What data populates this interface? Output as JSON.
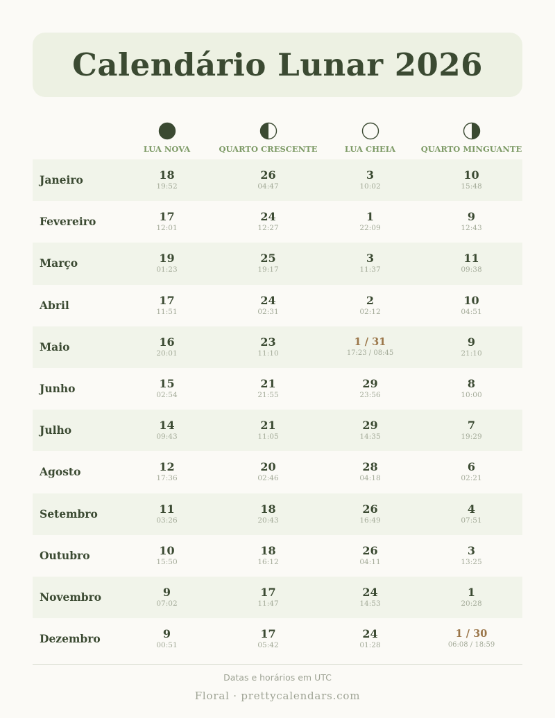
{
  "title": "Calendário Lunar 2026",
  "phases": [
    {
      "label": "LUA NOVA",
      "icon": "new-moon-icon"
    },
    {
      "label": "QUARTO CRESCENTE",
      "icon": "first-quarter-moon-icon"
    },
    {
      "label": "LUA CHEIA",
      "icon": "full-moon-icon"
    },
    {
      "label": "QUARTO MINGUANTE",
      "icon": "last-quarter-moon-icon"
    }
  ],
  "months": [
    {
      "name": "Janeiro",
      "cells": [
        {
          "day": "18",
          "time": "19:52"
        },
        {
          "day": "26",
          "time": "04:47"
        },
        {
          "day": "3",
          "time": "10:02"
        },
        {
          "day": "10",
          "time": "15:48"
        }
      ]
    },
    {
      "name": "Fevereiro",
      "cells": [
        {
          "day": "17",
          "time": "12:01"
        },
        {
          "day": "24",
          "time": "12:27"
        },
        {
          "day": "1",
          "time": "22:09"
        },
        {
          "day": "9",
          "time": "12:43"
        }
      ]
    },
    {
      "name": "Março",
      "cells": [
        {
          "day": "19",
          "time": "01:23"
        },
        {
          "day": "25",
          "time": "19:17"
        },
        {
          "day": "3",
          "time": "11:37"
        },
        {
          "day": "11",
          "time": "09:38"
        }
      ]
    },
    {
      "name": "Abril",
      "cells": [
        {
          "day": "17",
          "time": "11:51"
        },
        {
          "day": "24",
          "time": "02:31"
        },
        {
          "day": "2",
          "time": "02:12"
        },
        {
          "day": "10",
          "time": "04:51"
        }
      ]
    },
    {
      "name": "Maio",
      "cells": [
        {
          "day": "16",
          "time": "20:01"
        },
        {
          "day": "23",
          "time": "11:10"
        },
        {
          "day": "1 / 31",
          "time": "17:23 / 08:45"
        },
        {
          "day": "9",
          "time": "21:10"
        }
      ]
    },
    {
      "name": "Junho",
      "cells": [
        {
          "day": "15",
          "time": "02:54"
        },
        {
          "day": "21",
          "time": "21:55"
        },
        {
          "day": "29",
          "time": "23:56"
        },
        {
          "day": "8",
          "time": "10:00"
        }
      ]
    },
    {
      "name": "Julho",
      "cells": [
        {
          "day": "14",
          "time": "09:43"
        },
        {
          "day": "21",
          "time": "11:05"
        },
        {
          "day": "29",
          "time": "14:35"
        },
        {
          "day": "7",
          "time": "19:29"
        }
      ]
    },
    {
      "name": "Agosto",
      "cells": [
        {
          "day": "12",
          "time": "17:36"
        },
        {
          "day": "20",
          "time": "02:46"
        },
        {
          "day": "28",
          "time": "04:18"
        },
        {
          "day": "6",
          "time": "02:21"
        }
      ]
    },
    {
      "name": "Setembro",
      "cells": [
        {
          "day": "11",
          "time": "03:26"
        },
        {
          "day": "18",
          "time": "20:43"
        },
        {
          "day": "26",
          "time": "16:49"
        },
        {
          "day": "4",
          "time": "07:51"
        }
      ]
    },
    {
      "name": "Outubro",
      "cells": [
        {
          "day": "10",
          "time": "15:50"
        },
        {
          "day": "18",
          "time": "16:12"
        },
        {
          "day": "26",
          "time": "04:11"
        },
        {
          "day": "3",
          "time": "13:25"
        }
      ]
    },
    {
      "name": "Novembro",
      "cells": [
        {
          "day": "9",
          "time": "07:02"
        },
        {
          "day": "17",
          "time": "11:47"
        },
        {
          "day": "24",
          "time": "14:53"
        },
        {
          "day": "1",
          "time": "20:28"
        }
      ]
    },
    {
      "name": "Dezembro",
      "cells": [
        {
          "day": "9",
          "time": "00:51"
        },
        {
          "day": "17",
          "time": "05:42"
        },
        {
          "day": "24",
          "time": "01:28"
        },
        {
          "day": "1 / 30",
          "time": "06:08 / 18:59"
        }
      ]
    }
  ],
  "footer": {
    "note": "Datas e horários em UTC",
    "brand": "Floral · prettycalendars.com"
  },
  "colors": {
    "dark": "#3b4a32",
    "accent_green": "#7d9a66",
    "highlight": "#9a7548",
    "title_bg": "#edf1e3",
    "row_shade": "#f1f4ea"
  }
}
